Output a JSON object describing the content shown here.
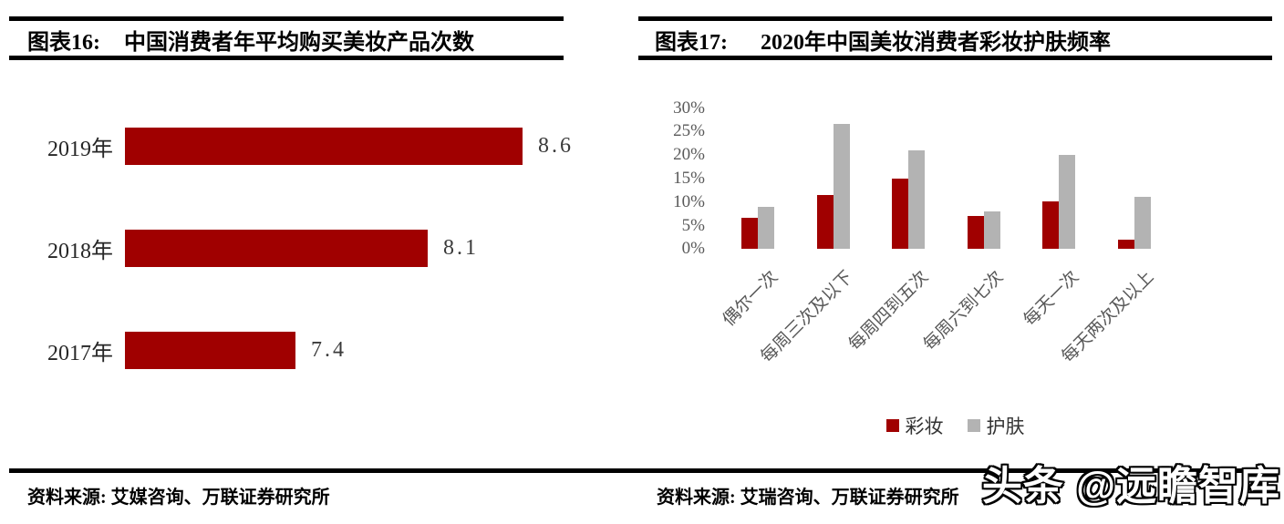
{
  "figures": {
    "left": {
      "label": "图表16:",
      "title": "中国消费者年平均购买美妆产品次数",
      "source": "资料来源: 艾媒咨询、万联证券研究所"
    },
    "right": {
      "label": "图表17:",
      "title": "2020年中国美妆消费者彩妆护肤频率",
      "source": "资料来源: 艾瑞咨询、万联证券研究所"
    }
  },
  "watermark": "头条 @远瞻智库",
  "chart_data": [
    {
      "type": "bar",
      "orientation": "horizontal",
      "title": "中国消费者年平均购买美妆产品次数",
      "categories": [
        "2019年",
        "2018年",
        "2017年"
      ],
      "values": [
        8.6,
        8.1,
        7.4
      ],
      "data_labels": [
        "8.6",
        "8.1",
        "7.4"
      ],
      "bar_color": "#A00000",
      "axis_min": 6.5,
      "axis_max": 8.6,
      "grid": false,
      "legend_position": "none"
    },
    {
      "type": "bar",
      "orientation": "vertical",
      "title": "2020年中国美妆消费者彩妆护肤频率",
      "categories": [
        "偶尔一次",
        "每周三次及以下",
        "每周四到五次",
        "每周六到七次",
        "每天一次",
        "每天两次及以上"
      ],
      "series": [
        {
          "name": "彩妆",
          "color": "#A00000",
          "values": [
            6.5,
            11.5,
            15,
            7,
            10,
            2
          ]
        },
        {
          "name": "护肤",
          "color": "#B3B3B3",
          "values": [
            9,
            26.5,
            21,
            8,
            20,
            11
          ]
        }
      ],
      "ylim": [
        0,
        30
      ],
      "ytick_step": 5,
      "yticks": [
        "30%",
        "25%",
        "20%",
        "15%",
        "10%",
        "5%",
        "0%"
      ],
      "grid": false,
      "legend_position": "bottom"
    }
  ]
}
